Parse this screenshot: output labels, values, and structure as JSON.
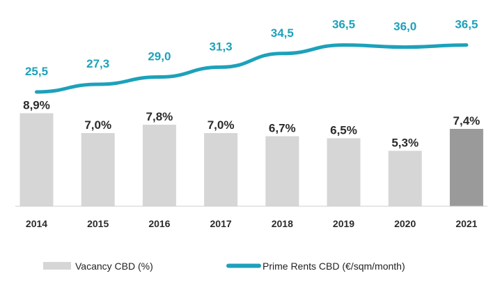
{
  "chart_data": {
    "type": "bar+line",
    "categories": [
      "2014",
      "2015",
      "2016",
      "2017",
      "2018",
      "2019",
      "2020",
      "2021"
    ],
    "series": [
      {
        "name": "Vacancy CBD (%)",
        "type": "bar",
        "values": [
          8.9,
          7.0,
          7.8,
          7.0,
          6.7,
          6.5,
          5.3,
          7.4
        ],
        "labels": [
          "8,9%",
          "7,0%",
          "7,8%",
          "7,0%",
          "6,7%",
          "6,5%",
          "5,3%",
          "7,4%"
        ],
        "color": "#d6d6d6",
        "highlight_color": "#9a9a9a",
        "highlight_index": 7
      },
      {
        "name": "Prime Rents CBD (€/sqm/month)",
        "type": "line",
        "values": [
          25.5,
          27.3,
          29.0,
          31.3,
          34.5,
          36.5,
          36.0,
          36.5
        ],
        "labels": [
          "25,5",
          "27,3",
          "29,0",
          "31,3",
          "34,5",
          "36,5",
          "36,0",
          "36,5"
        ],
        "color": "#1da1bb"
      }
    ],
    "legend": [
      "Vacancy CBD (%)",
      "Prime Rents CBD (€/sqm/month)"
    ],
    "legend_position": "bottom"
  }
}
